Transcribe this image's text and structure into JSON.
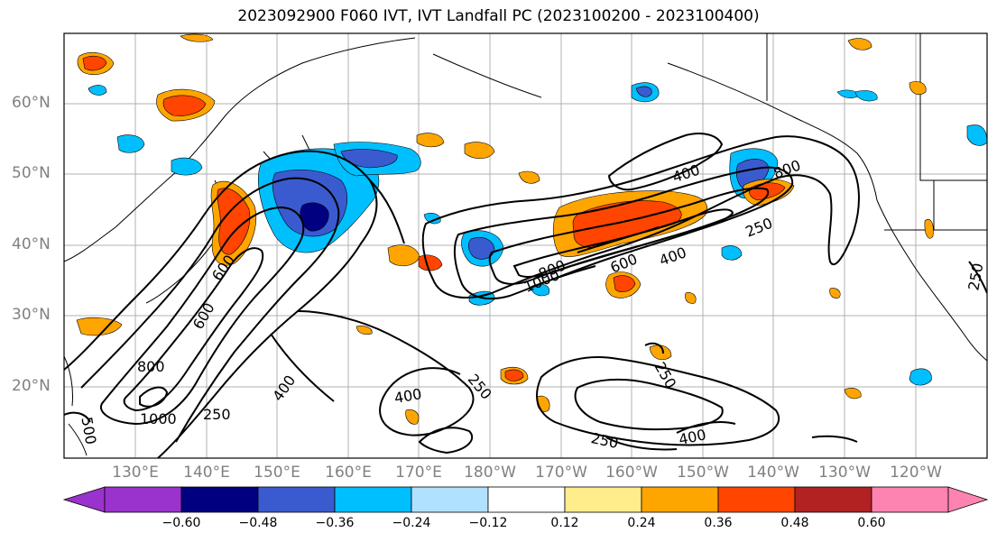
{
  "title": "2023092900 F060 IVT, IVT Landfall PC (2023100200 - 2023100400)",
  "lat_labels": [
    "60°N",
    "50°N",
    "40°N",
    "30°N",
    "20°N"
  ],
  "lon_labels": [
    "130°E",
    "140°E",
    "150°E",
    "160°E",
    "170°E",
    "180°W",
    "170°W",
    "160°W",
    "150°W",
    "140°W",
    "130°W",
    "120°W"
  ],
  "contour_labels": [
    "400",
    "800",
    "250",
    "400",
    "600",
    "800",
    "1000",
    "600",
    "800",
    "1000",
    "250",
    "400",
    "400",
    "250",
    "250",
    "400",
    "250",
    "250",
    "500",
    "600"
  ],
  "colorbar": {
    "ticks": [
      "−0.60",
      "−0.48",
      "−0.36",
      "−0.24",
      "−0.12",
      "0.12",
      "0.24",
      "0.36",
      "0.48",
      "0.60"
    ],
    "colors": [
      "#9a32cd",
      "#000080",
      "#3a5bcf",
      "#00bfff",
      "#b0e2ff",
      "#ffffff",
      "#ffec8b",
      "#ffa500",
      "#ff4500",
      "#b22222",
      "#ff83b0"
    ]
  }
}
